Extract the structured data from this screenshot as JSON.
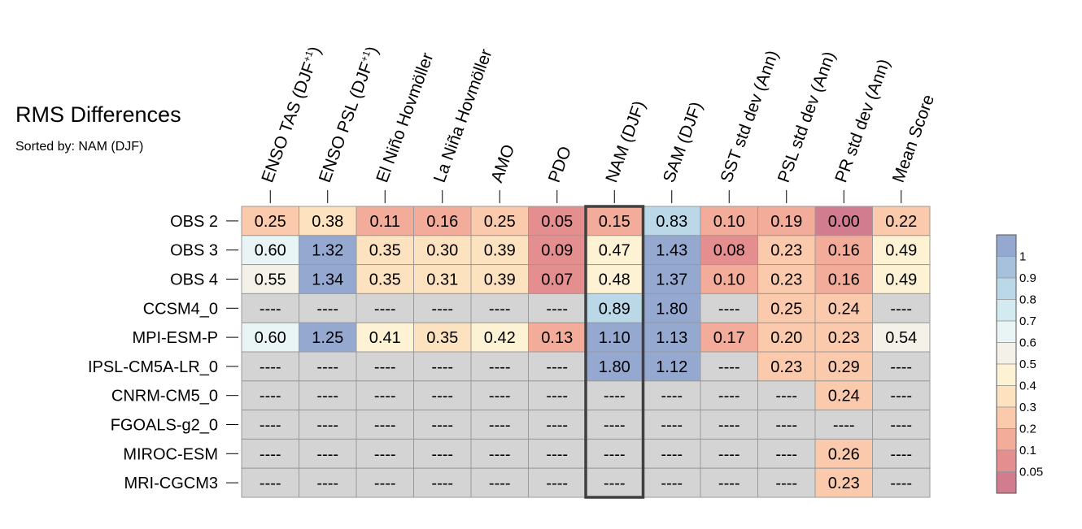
{
  "chart_data": {
    "type": "heatmap",
    "title": "RMS Differences",
    "subtitle": "Sorted by: NAM (DJF)",
    "columns": [
      [
        "ENSO TAS (DJF",
        "+1",
        ")"
      ],
      [
        "ENSO PSL (DJF",
        "+1",
        ")"
      ],
      [
        "El Niño Hovmöller"
      ],
      [
        "La Niña Hovmöller"
      ],
      [
        "AMO"
      ],
      [
        "PDO"
      ],
      [
        "NAM (DJF)"
      ],
      [
        "SAM (DJF)"
      ],
      [
        "SST std dev (Ann)"
      ],
      [
        "PSL std dev (Ann)"
      ],
      [
        "PR std dev (Ann)"
      ],
      [
        "Mean Score"
      ]
    ],
    "rows": [
      "OBS 2",
      "OBS 3",
      "OBS 4",
      "CCSM4_0",
      "MPI-ESM-P",
      "IPSL-CM5A-LR_0",
      "CNRM-CM5_0",
      "FGOALS-g2_0",
      "MIROC-ESM",
      "MRI-CGCM3"
    ],
    "missing_label": "----",
    "values": [
      [
        "0.25",
        "0.38",
        "0.11",
        "0.16",
        "0.25",
        "0.05",
        "0.15",
        "0.83",
        "0.10",
        "0.19",
        "0.00",
        "0.22"
      ],
      [
        "0.60",
        "1.32",
        "0.35",
        "0.30",
        "0.39",
        "0.09",
        "0.47",
        "1.43",
        "0.08",
        "0.23",
        "0.16",
        "0.49"
      ],
      [
        "0.55",
        "1.34",
        "0.35",
        "0.31",
        "0.39",
        "0.07",
        "0.48",
        "1.37",
        "0.10",
        "0.23",
        "0.16",
        "0.49"
      ],
      [
        null,
        null,
        null,
        null,
        null,
        null,
        "0.89",
        "1.80",
        null,
        "0.25",
        "0.24",
        null
      ],
      [
        "0.60",
        "1.25",
        "0.41",
        "0.35",
        "0.42",
        "0.13",
        "1.10",
        "1.13",
        "0.17",
        "0.20",
        "0.23",
        "0.54"
      ],
      [
        null,
        null,
        null,
        null,
        null,
        null,
        "1.80",
        "1.12",
        null,
        "0.23",
        "0.29",
        null
      ],
      [
        null,
        null,
        null,
        null,
        null,
        null,
        null,
        null,
        null,
        null,
        "0.24",
        null
      ],
      [
        null,
        null,
        null,
        null,
        null,
        null,
        null,
        null,
        null,
        null,
        null,
        null
      ],
      [
        null,
        null,
        null,
        null,
        null,
        null,
        null,
        null,
        null,
        null,
        "0.26",
        null
      ],
      [
        null,
        null,
        null,
        null,
        null,
        null,
        null,
        null,
        null,
        null,
        "0.23",
        null
      ]
    ],
    "highlighted_column": "NAM (DJF)",
    "colorbar": {
      "labels": [
        "1",
        "0.9",
        "0.8",
        "0.7",
        "0.6",
        "0.5",
        "0.4",
        "0.3",
        "0.2",
        "0.1",
        "0.05"
      ],
      "bins": [
        {
          "min": 1.0,
          "color": "#95a8d0"
        },
        {
          "min": 0.9,
          "color": "#a7c1dc"
        },
        {
          "min": 0.8,
          "color": "#bad8e7"
        },
        {
          "min": 0.7,
          "color": "#d4eaf1"
        },
        {
          "min": 0.6,
          "color": "#e9f4f4"
        },
        {
          "min": 0.5,
          "color": "#f4f2e8"
        },
        {
          "min": 0.4,
          "color": "#fdf2d3"
        },
        {
          "min": 0.3,
          "color": "#fde2bf"
        },
        {
          "min": 0.2,
          "color": "#fbc9ab"
        },
        {
          "min": 0.1,
          "color": "#f3ab9a"
        },
        {
          "min": 0.05,
          "color": "#e48e90"
        },
        {
          "min": 0.0,
          "color": "#d27c90"
        }
      ]
    },
    "missing_color": "#d4d4d4",
    "grid_color": "#9a9a9a",
    "highlight_color": "#404040"
  }
}
